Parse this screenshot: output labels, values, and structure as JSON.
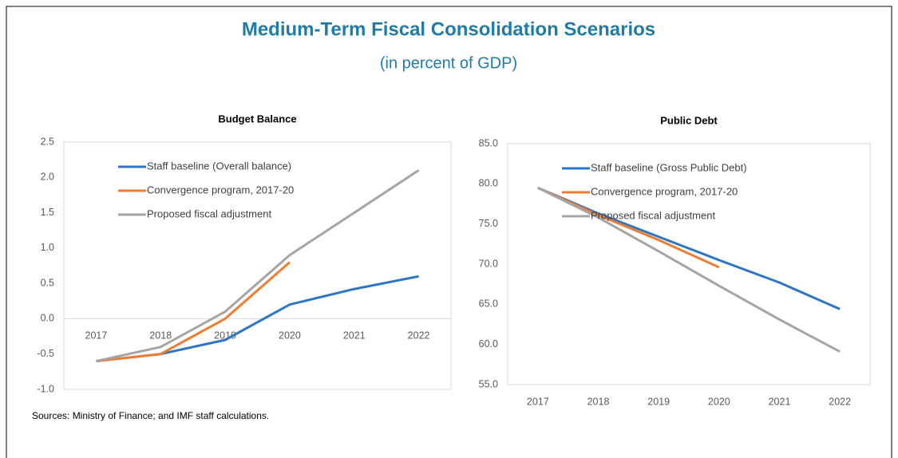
{
  "title": "Medium-Term Fiscal Consolidation Scenarios",
  "subtitle": "(in percent of GDP)",
  "source": "Sources: Ministry of Finance; and IMF staff calculations.",
  "chart_data": [
    {
      "type": "line",
      "title": "Budget Balance",
      "categories": [
        "2017",
        "2018",
        "2019",
        "2020",
        "2021",
        "2022"
      ],
      "series": [
        {
          "name": "Staff baseline (Overall balance)",
          "color": "#2e75c6",
          "values": [
            -0.6,
            -0.5,
            -0.3,
            0.2,
            0.42,
            0.6
          ]
        },
        {
          "name": "Convergence program, 2017-20",
          "color": "#ed7d31",
          "values": [
            -0.6,
            -0.5,
            0.0,
            0.8,
            null,
            null
          ]
        },
        {
          "name": "Proposed fiscal adjustment",
          "color": "#a5a5a5",
          "values": [
            -0.6,
            -0.4,
            0.1,
            0.9,
            1.5,
            2.1
          ]
        }
      ],
      "ylim": [
        -1,
        2.5
      ],
      "yticks": [
        {
          "value": -1,
          "label": "-1.0"
        },
        -0.5,
        {
          "value": 0,
          "label": "0.0"
        },
        0.5,
        {
          "value": 1,
          "label": "1.0"
        },
        1.5,
        {
          "value": 2,
          "label": "2.0"
        },
        2.5
      ],
      "legend": "upper left"
    },
    {
      "type": "line",
      "title": "Public Debt",
      "categories": [
        "2017",
        "2018",
        "2019",
        "2020",
        "2021",
        "2022"
      ],
      "series": [
        {
          "name": "Staff baseline (Gross Public Debt)",
          "color": "#2e75c6",
          "values": [
            79.5,
            76.3,
            73.4,
            70.5,
            67.7,
            64.4
          ]
        },
        {
          "name": "Convergence program, 2017-20",
          "color": "#ed7d31",
          "values": [
            79.5,
            76.1,
            73.0,
            69.6,
            null,
            null
          ]
        },
        {
          "name": "Proposed fiscal adjustment",
          "color": "#a5a5a5",
          "values": [
            79.5,
            75.8,
            71.6,
            67.3,
            63.1,
            59.1
          ]
        }
      ],
      "ylim": [
        55,
        85
      ],
      "yticks": [
        {
          "value": 55,
          "label": "55.0"
        },
        {
          "value": 60,
          "label": "60.0"
        },
        {
          "value": 65,
          "label": "65.0"
        },
        {
          "value": 70,
          "label": "70.0"
        },
        {
          "value": 75,
          "label": "75.0"
        },
        {
          "value": 80,
          "label": "80.0"
        },
        {
          "value": 85,
          "label": "85.0"
        }
      ],
      "legend": "upper left"
    }
  ]
}
